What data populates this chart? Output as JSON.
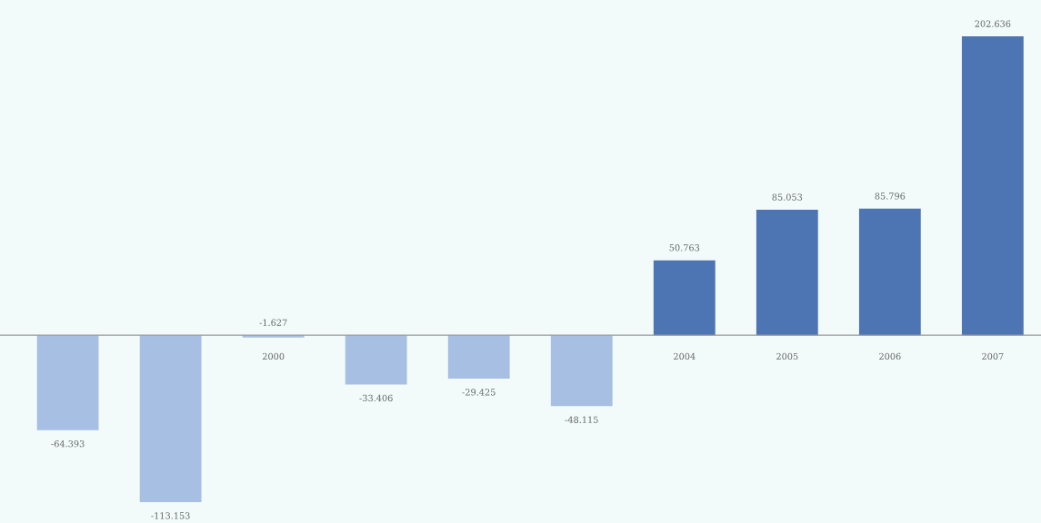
{
  "chart_data": {
    "type": "bar",
    "categories": [
      null,
      null,
      "2000",
      null,
      null,
      null,
      "2004",
      "2005",
      "2006",
      "2007"
    ],
    "values": [
      -64.393,
      -113.153,
      -1.627,
      -33.406,
      -29.425,
      -48.115,
      50.763,
      85.053,
      85.796,
      202.636
    ],
    "colors": [
      "#a8bfe4",
      "#a8bfe4",
      "#a8bfe4",
      "#a8bfe4",
      "#a8bfe4",
      "#a8bfe4",
      "#4d74b3",
      "#4d74b3",
      "#4d74b3",
      "#4d74b3"
    ],
    "data_labels": true,
    "grid": false,
    "legend": false
  }
}
